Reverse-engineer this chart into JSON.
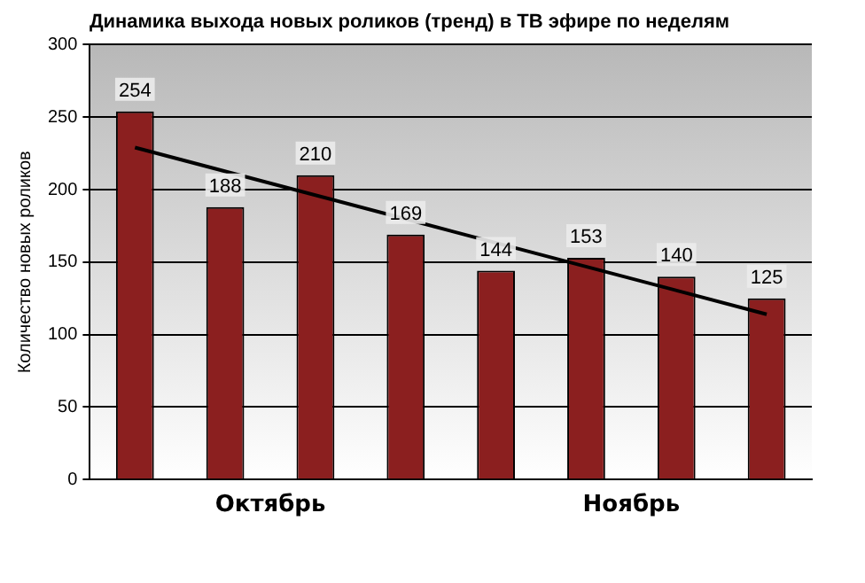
{
  "chart_data": {
    "type": "bar",
    "title": "Динамика выхода новых роликов (тренд) в ТВ эфире по неделям",
    "ylabel": "Количество новых роликов",
    "categories": [
      null,
      null,
      null,
      null,
      null,
      null,
      null,
      null
    ],
    "series": [
      {
        "color": "#8b1f1f",
        "values": [
          254,
          188,
          210,
          169,
          144,
          153,
          140,
          125
        ],
        "value_labels": [
          "254",
          "188",
          "210",
          "169",
          "144",
          "153",
          "140",
          "125"
        ]
      },
      {
        "type": "line",
        "color": "#000000",
        "values": [
          229,
          null,
          null,
          null,
          null,
          null,
          null,
          114
        ]
      }
    ],
    "ylim": [
      0,
      300
    ],
    "yticks": [
      0,
      50,
      100,
      150,
      200,
      250,
      300
    ],
    "grid": "y",
    "legend": false,
    "marker": "none",
    "annotations": [
      "Октябрь",
      "Ноябрь"
    ]
  }
}
